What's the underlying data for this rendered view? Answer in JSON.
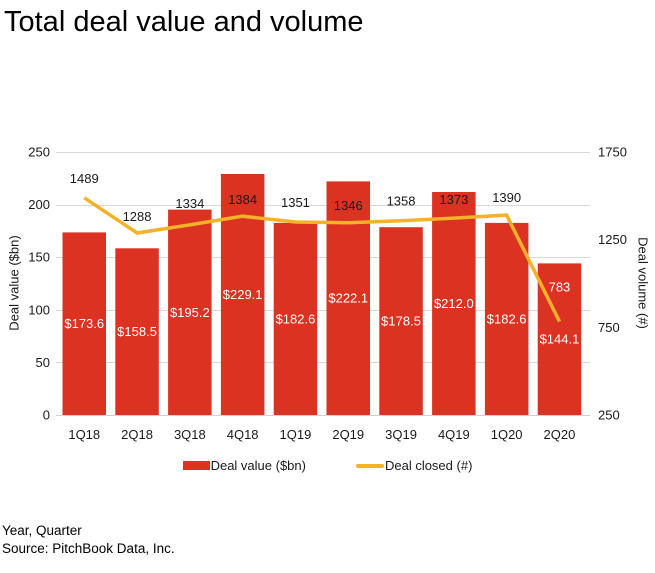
{
  "title": "Total deal value and volume",
  "chart_data": {
    "type": "bar",
    "title": "Total deal value and volume",
    "categories": [
      "1Q18",
      "2Q18",
      "3Q18",
      "4Q18",
      "1Q19",
      "2Q19",
      "3Q19",
      "4Q19",
      "1Q20",
      "2Q20"
    ],
    "series": [
      {
        "name": "Deal value ($bn)",
        "type": "bar",
        "axis": "left",
        "color": "#dc3222",
        "values": [
          173.6,
          158.5,
          195.2,
          229.1,
          182.6,
          222.1,
          178.5,
          212.0,
          182.6,
          144.1
        ],
        "data_labels": [
          "$173.6",
          "$158.5",
          "$195.2",
          "$229.1",
          "$182.6",
          "$222.1",
          "$178.5",
          "$212.0",
          "$182.6",
          "$144.1"
        ],
        "data_label_color": "#ffffff"
      },
      {
        "name": "Deal closed (#)",
        "type": "line",
        "axis": "right",
        "color": "#f3b229",
        "values": [
          1489,
          1288,
          1334,
          1384,
          1351,
          1346,
          1358,
          1373,
          1390,
          783
        ],
        "data_labels": [
          "1489",
          "1288",
          "1334",
          "1384",
          "1351",
          "1346",
          "1358",
          "1373",
          "1390",
          "783"
        ],
        "data_label_colors": [
          "#1a1a1a",
          "#1a1a1a",
          "#1a1a1a",
          "#1a1a1a",
          "#1a1a1a",
          "#1a1a1a",
          "#1a1a1a",
          "#1a1a1a",
          "#1a1a1a",
          "#ffffff"
        ],
        "data_label_dy": [
          -19,
          -16,
          -21,
          -16,
          -19,
          -17,
          -19,
          -18,
          -17,
          -34
        ]
      }
    ],
    "xlabel": "Year, Quarter",
    "left_axis": {
      "label": "Deal value ($bn)",
      "range": [
        0,
        250
      ],
      "ticks": [
        0,
        50,
        100,
        150,
        200,
        250
      ]
    },
    "right_axis": {
      "label": "Deal volume (#)",
      "range": [
        250,
        1750
      ],
      "ticks": [
        250,
        750,
        1250,
        1750
      ]
    },
    "grid": true,
    "gridline_color": "#d9d9d9",
    "axis_line_color": "#d0d0d0",
    "tick_label_color": "#1a1a1a",
    "legend_position": "bottom"
  },
  "legend": {
    "items": [
      {
        "label": "Deal value ($bn)",
        "shape": "bar",
        "color": "#dc3222"
      },
      {
        "label": "Deal closed (#)",
        "shape": "line",
        "color": "#f3b229"
      }
    ]
  },
  "footer": {
    "line1": "Year, Quarter",
    "line2": "Source: PitchBook Data, Inc."
  }
}
